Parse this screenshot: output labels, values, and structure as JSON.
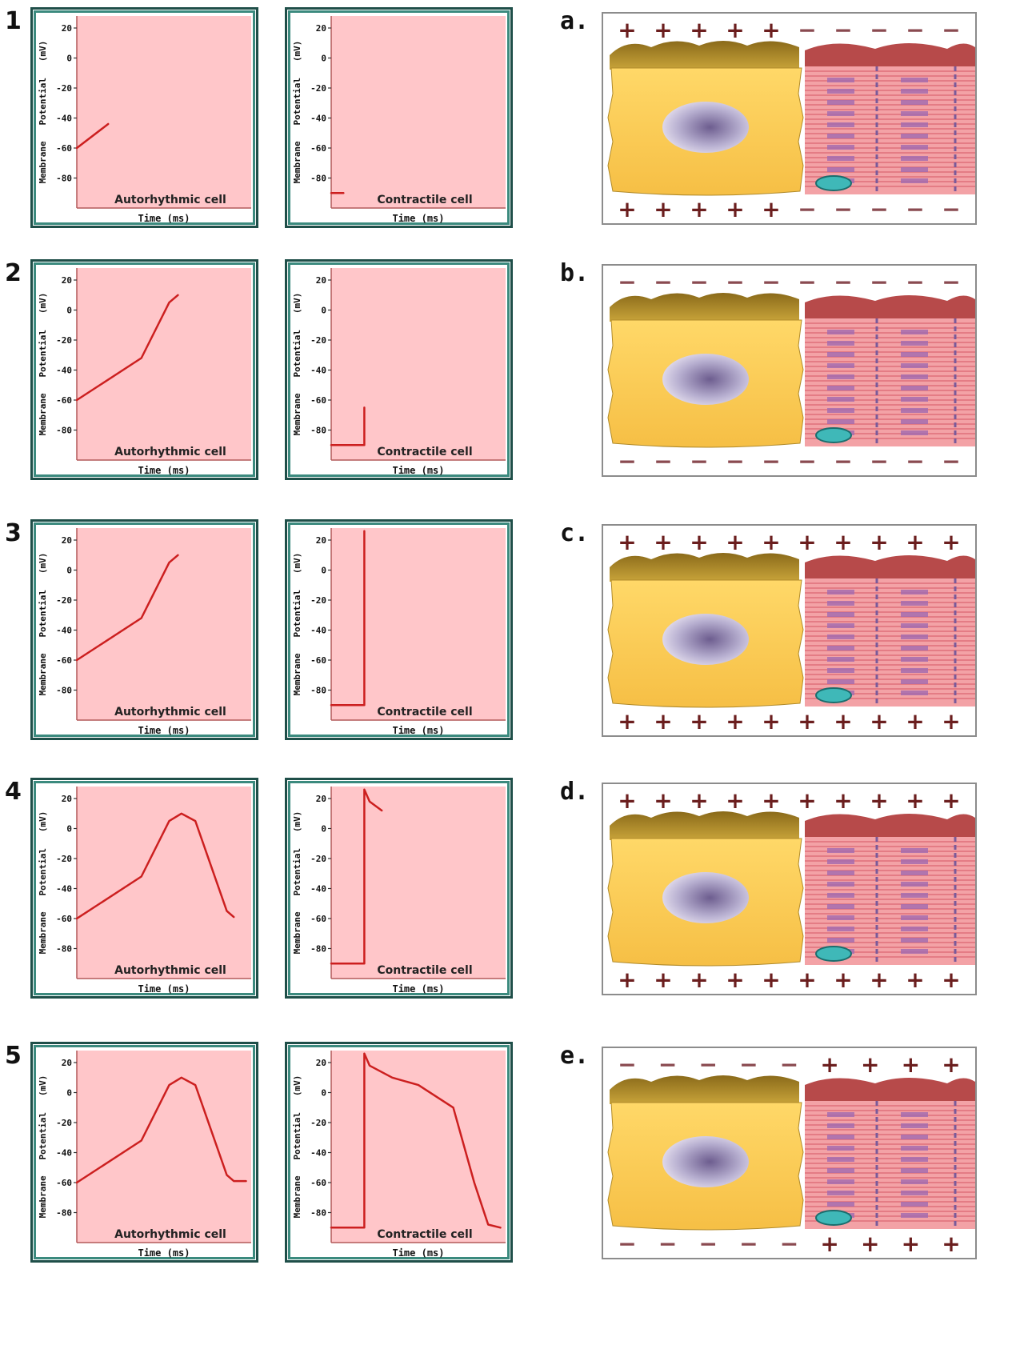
{
  "rows": [
    {
      "step": "1",
      "label": "a.",
      "auto": {
        "title": "Autorhythmic cell",
        "points": [
          [
            0,
            -60
          ],
          [
            0.18,
            -44
          ]
        ]
      },
      "contract": {
        "title": "Contractile cell",
        "points": [
          [
            0,
            -90
          ],
          [
            0.07,
            -90
          ]
        ]
      },
      "top_sign": [
        "+",
        "+",
        "+",
        "+",
        "+",
        "−",
        "−",
        "−",
        "−",
        "−"
      ],
      "bottom_sign": [
        "+",
        "+",
        "+",
        "+",
        "+",
        "−",
        "−",
        "−",
        "−",
        "−"
      ]
    },
    {
      "step": "2",
      "label": "b.",
      "auto": {
        "title": "Autorhythmic cell",
        "points": [
          [
            0,
            -60
          ],
          [
            0.37,
            -32
          ],
          [
            0.53,
            5
          ],
          [
            0.58,
            10
          ]
        ]
      },
      "contract": {
        "title": "Contractile cell",
        "points": [
          [
            0,
            -90
          ],
          [
            0.19,
            -90
          ],
          [
            0.19,
            -65
          ]
        ]
      },
      "top_sign": [
        "−",
        "−",
        "−",
        "−",
        "−",
        "−",
        "−",
        "−",
        "−",
        "−"
      ],
      "bottom_sign": [
        "−",
        "−",
        "−",
        "−",
        "−",
        "−",
        "−",
        "−",
        "−",
        "−"
      ]
    },
    {
      "step": "3",
      "label": "c.",
      "auto": {
        "title": "Autorhythmic cell",
        "points": [
          [
            0,
            -60
          ],
          [
            0.37,
            -32
          ],
          [
            0.53,
            5
          ],
          [
            0.58,
            10
          ]
        ]
      },
      "contract": {
        "title": "Contractile cell",
        "points": [
          [
            0,
            -90
          ],
          [
            0.19,
            -90
          ],
          [
            0.19,
            26
          ]
        ]
      },
      "top_sign": [
        "+",
        "+",
        "+",
        "+",
        "+",
        "+",
        "+",
        "+",
        "+",
        "+"
      ],
      "bottom_sign": [
        "+",
        "+",
        "+",
        "+",
        "+",
        "+",
        "+",
        "+",
        "+",
        "+"
      ]
    },
    {
      "step": "4",
      "label": "d.",
      "auto": {
        "title": "Autorhythmic cell",
        "points": [
          [
            0,
            -60
          ],
          [
            0.37,
            -32
          ],
          [
            0.53,
            5
          ],
          [
            0.6,
            10
          ],
          [
            0.68,
            5
          ],
          [
            0.86,
            -55
          ],
          [
            0.9,
            -59
          ]
        ]
      },
      "contract": {
        "title": "Contractile cell",
        "points": [
          [
            0,
            -90
          ],
          [
            0.19,
            -90
          ],
          [
            0.19,
            26
          ],
          [
            0.22,
            18
          ],
          [
            0.29,
            12
          ]
        ]
      },
      "top_sign": [
        "+",
        "+",
        "+",
        "+",
        "+",
        "+",
        "+",
        "+",
        "+",
        "+"
      ],
      "bottom_sign": [
        "+",
        "+",
        "+",
        "+",
        "+",
        "+",
        "+",
        "+",
        "+",
        "+"
      ]
    },
    {
      "step": "5",
      "label": "e.",
      "auto": {
        "title": "Autorhythmic cell",
        "points": [
          [
            0,
            -60
          ],
          [
            0.37,
            -32
          ],
          [
            0.53,
            5
          ],
          [
            0.6,
            10
          ],
          [
            0.68,
            5
          ],
          [
            0.86,
            -55
          ],
          [
            0.9,
            -59
          ],
          [
            0.97,
            -59
          ]
        ]
      },
      "contract": {
        "title": "Contractile cell",
        "points": [
          [
            0,
            -90
          ],
          [
            0.19,
            -90
          ],
          [
            0.19,
            26
          ],
          [
            0.22,
            18
          ],
          [
            0.35,
            10
          ],
          [
            0.5,
            5
          ],
          [
            0.7,
            -10
          ],
          [
            0.82,
            -60
          ],
          [
            0.9,
            -88
          ],
          [
            0.97,
            -90
          ]
        ]
      },
      "top_sign": [
        "−",
        "−",
        "−",
        "−",
        "−",
        "+",
        "+",
        "+",
        "+"
      ],
      "bottom_sign": [
        "−",
        "−",
        "−",
        "−",
        "−",
        "+",
        "+",
        "+",
        "+"
      ]
    }
  ],
  "axis": {
    "ylabel": "Membrane   Potential   (mV)",
    "xlabel": "Time (ms)",
    "ticks": [
      "20",
      "0",
      "-20",
      "-40",
      "-60",
      "-80"
    ],
    "ylim": [
      -100,
      28
    ]
  },
  "colors": {
    "plot_bg": "#ffc6c9",
    "trace": "#cc1f1f",
    "axis": "#b35a5a",
    "panel_border": "#2f6e67"
  }
}
